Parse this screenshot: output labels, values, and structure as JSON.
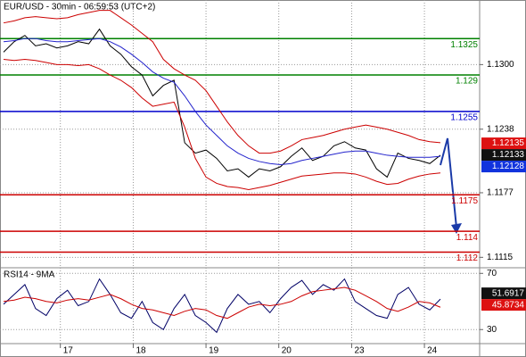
{
  "chart_data": [
    {
      "type": "line",
      "title": "EUR/USD - 30min - 06:59:53 (UTC+2)",
      "xlim": [
        0,
        41
      ],
      "ylim": [
        1.1105,
        1.1362
      ],
      "yticks": [
        {
          "value": 1.13,
          "label": "1.1300"
        },
        1.1238,
        1.1177,
        1.1115
      ],
      "xticks": [
        {
          "value": 5.33,
          "label": "17"
        },
        {
          "value": 12.17,
          "label": "18"
        },
        {
          "value": 19,
          "label": "19"
        },
        {
          "value": 25.83,
          "label": "20"
        },
        {
          "value": 32.67,
          "label": "23"
        },
        {
          "value": 39.5,
          "label": "24"
        }
      ],
      "grid": true,
      "series": [
        {
          "color": "#000000",
          "values": [
            1.1312,
            1.1322,
            1.1328,
            1.1318,
            1.132,
            1.1316,
            1.1318,
            1.1322,
            1.132,
            1.1334,
            1.1318,
            1.131,
            1.1298,
            1.129,
            1.127,
            1.128,
            1.1285,
            1.1225,
            1.1215,
            1.1218,
            1.121,
            1.1198,
            1.12,
            1.1192,
            1.12,
            1.1198,
            1.1202,
            1.1212,
            1.122,
            1.1208,
            1.1212,
            1.1222,
            1.1226,
            1.122,
            1.1218,
            1.12,
            1.1192,
            1.1215,
            1.121,
            1.1208,
            1.1205,
            1.1213
          ]
        },
        {
          "color": "#2222cc",
          "values": [
            1.1322,
            1.1323,
            1.1325,
            1.1325,
            1.1323,
            1.1322,
            1.1322,
            1.1323,
            1.1324,
            1.1325,
            1.1322,
            1.1317,
            1.131,
            1.1302,
            1.1293,
            1.1287,
            1.1283,
            1.127,
            1.1255,
            1.1242,
            1.1232,
            1.1222,
            1.1215,
            1.121,
            1.1207,
            1.1205,
            1.1204,
            1.1205,
            1.1208,
            1.121,
            1.1212,
            1.1214,
            1.1216,
            1.1217,
            1.1217,
            1.1215,
            1.1213,
            1.1212,
            1.1211,
            1.1211,
            1.1211,
            1.1212
          ]
        },
        {
          "color": "#cc0000",
          "values": [
            1.134,
            1.1342,
            1.1345,
            1.1346,
            1.1345,
            1.1344,
            1.1345,
            1.1348,
            1.135,
            1.1352,
            1.1352,
            1.1345,
            1.1338,
            1.133,
            1.1322,
            1.1305,
            1.1296,
            1.129,
            1.1285,
            1.1275,
            1.126,
            1.1245,
            1.1232,
            1.1222,
            1.1215,
            1.1215,
            1.1217,
            1.1222,
            1.1228,
            1.123,
            1.1232,
            1.1235,
            1.1238,
            1.124,
            1.1242,
            1.124,
            1.1238,
            1.1235,
            1.1232,
            1.1228,
            1.1226,
            1.1225
          ]
        },
        {
          "color": "#cc0000",
          "values": [
            1.1305,
            1.1304,
            1.1305,
            1.1304,
            1.1302,
            1.13,
            1.13,
            1.1299,
            1.13,
            1.1296,
            1.129,
            1.1285,
            1.1278,
            1.1268,
            1.126,
            1.1262,
            1.1264,
            1.124,
            1.121,
            1.1192,
            1.1186,
            1.1183,
            1.1182,
            1.118,
            1.1182,
            1.1184,
            1.1187,
            1.119,
            1.1193,
            1.1194,
            1.1195,
            1.1196,
            1.1196,
            1.1195,
            1.1192,
            1.1188,
            1.1185,
            1.1186,
            1.119,
            1.1193,
            1.1195,
            1.1196
          ]
        }
      ],
      "levels": [
        {
          "value": 1.1325,
          "color": "#008000"
        },
        {
          "value": 1.129,
          "color": "#008000"
        },
        {
          "value": 1.1255,
          "color": "#0000cc"
        },
        {
          "value": 1.1175,
          "color": "#cc0000"
        },
        {
          "value": 1.114,
          "color": "#cc0000"
        },
        {
          "value": 1.112,
          "color": "#cc0000"
        }
      ],
      "markers": [
        {
          "value": 1.12135,
          "color": "#dd1111"
        },
        {
          "value": 1.12133,
          "color": "#111111"
        },
        {
          "value": 1.12128,
          "color": "#1133dd"
        }
      ]
    },
    {
      "type": "line",
      "title": "RSI14 - 9MA",
      "xlim": [
        0,
        41
      ],
      "ylim": [
        20,
        74
      ],
      "yticks": [
        30,
        70
      ],
      "grid": true,
      "series": [
        {
          "color": "#000066",
          "values": [
            48,
            55,
            62,
            45,
            40,
            52,
            58,
            47,
            50,
            66,
            55,
            42,
            38,
            50,
            35,
            30,
            45,
            55,
            40,
            35,
            28,
            45,
            55,
            48,
            50,
            42,
            52,
            60,
            65,
            55,
            62,
            58,
            66,
            50,
            45,
            40,
            38,
            55,
            60,
            48,
            44,
            51.6917
          ]
        },
        {
          "color": "#cc0000",
          "values": [
            50,
            51,
            53,
            52,
            50,
            49,
            51,
            52,
            51,
            53,
            55,
            52,
            48,
            45,
            44,
            42,
            40,
            43,
            45,
            44,
            40,
            38,
            42,
            46,
            48,
            47,
            48,
            50,
            54,
            57,
            58,
            59,
            60,
            58,
            54,
            50,
            45,
            43,
            46,
            50,
            49,
            45.8734
          ]
        }
      ],
      "markers": [
        {
          "value": 51.6917,
          "color": "#111111"
        },
        {
          "value": 45.8734,
          "color": "#dd1111"
        }
      ]
    }
  ]
}
